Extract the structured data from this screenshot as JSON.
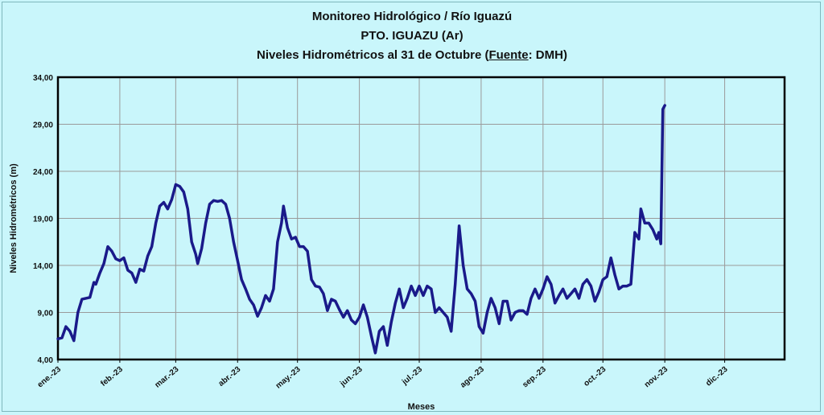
{
  "chart_data": {
    "type": "line",
    "title": "Monitoreo Hidrológico / Río Iguazú",
    "subtitle_1": "PTO.  IGUAZU (Ar)",
    "subtitle_2_prefix": "Niveles Hidrométricos  al 31 de Octubre (",
    "subtitle_2_source_label": "Fuente",
    "subtitle_2_suffix": ": DMH)",
    "xlabel": "Meses",
    "ylabel": "Niveles Hidrométricos (m)",
    "ylim": [
      4,
      34
    ],
    "yticks": [
      "4,00",
      "9,00",
      "14,00",
      "19,00",
      "24,00",
      "29,00",
      "34,00"
    ],
    "x_axis_type": "date",
    "xlim": [
      "2023-01-01",
      "2023-12-31"
    ],
    "xticks": [
      {
        "date": "2023-01-01",
        "label": "ene.-23"
      },
      {
        "date": "2023-02-01",
        "label": "feb.-23"
      },
      {
        "date": "2023-03-01",
        "label": "mar.-23"
      },
      {
        "date": "2023-04-01",
        "label": "abr.-23"
      },
      {
        "date": "2023-05-01",
        "label": "may.-23"
      },
      {
        "date": "2023-06-01",
        "label": "jun.-23"
      },
      {
        "date": "2023-07-01",
        "label": "jul.-23"
      },
      {
        "date": "2023-08-01",
        "label": "ago.-23"
      },
      {
        "date": "2023-09-01",
        "label": "sep.-23"
      },
      {
        "date": "2023-10-01",
        "label": "oct.-23"
      },
      {
        "date": "2023-11-01",
        "label": "nov.-23"
      },
      {
        "date": "2023-12-01",
        "label": "dic.-23"
      }
    ],
    "grid": true,
    "legend": "none",
    "line_color": "#1a1a8a",
    "series": [
      {
        "points": [
          [
            "2023-01-01",
            6.2
          ],
          [
            "2023-01-03",
            6.3
          ],
          [
            "2023-01-05",
            7.5
          ],
          [
            "2023-01-07",
            7.0
          ],
          [
            "2023-01-09",
            6.0
          ],
          [
            "2023-01-11",
            9.0
          ],
          [
            "2023-01-13",
            10.4
          ],
          [
            "2023-01-15",
            10.5
          ],
          [
            "2023-01-17",
            10.6
          ],
          [
            "2023-01-19",
            12.2
          ],
          [
            "2023-01-20",
            12.0
          ],
          [
            "2023-01-22",
            13.2
          ],
          [
            "2023-01-24",
            14.2
          ],
          [
            "2023-01-26",
            16.0
          ],
          [
            "2023-01-28",
            15.5
          ],
          [
            "2023-01-30",
            14.7
          ],
          [
            "2023-02-01",
            14.5
          ],
          [
            "2023-02-03",
            14.8
          ],
          [
            "2023-02-05",
            13.5
          ],
          [
            "2023-02-07",
            13.2
          ],
          [
            "2023-02-09",
            12.2
          ],
          [
            "2023-02-11",
            13.6
          ],
          [
            "2023-02-13",
            13.4
          ],
          [
            "2023-02-15",
            15.0
          ],
          [
            "2023-02-17",
            16.0
          ],
          [
            "2023-02-19",
            18.5
          ],
          [
            "2023-02-21",
            20.3
          ],
          [
            "2023-02-23",
            20.7
          ],
          [
            "2023-02-25",
            20.0
          ],
          [
            "2023-02-27",
            21.0
          ],
          [
            "2023-03-01",
            22.6
          ],
          [
            "2023-03-03",
            22.4
          ],
          [
            "2023-03-05",
            21.8
          ],
          [
            "2023-03-07",
            20.0
          ],
          [
            "2023-03-09",
            16.5
          ],
          [
            "2023-03-11",
            15.2
          ],
          [
            "2023-03-12",
            14.2
          ],
          [
            "2023-03-14",
            15.8
          ],
          [
            "2023-03-16",
            18.5
          ],
          [
            "2023-03-18",
            20.5
          ],
          [
            "2023-03-20",
            20.9
          ],
          [
            "2023-03-22",
            20.8
          ],
          [
            "2023-03-24",
            20.9
          ],
          [
            "2023-03-26",
            20.5
          ],
          [
            "2023-03-28",
            19.0
          ],
          [
            "2023-03-30",
            16.5
          ],
          [
            "2023-04-01",
            14.5
          ],
          [
            "2023-04-03",
            12.5
          ],
          [
            "2023-04-05",
            11.5
          ],
          [
            "2023-04-07",
            10.4
          ],
          [
            "2023-04-09",
            9.8
          ],
          [
            "2023-04-11",
            8.6
          ],
          [
            "2023-04-13",
            9.5
          ],
          [
            "2023-04-15",
            10.8
          ],
          [
            "2023-04-17",
            10.2
          ],
          [
            "2023-04-19",
            11.5
          ],
          [
            "2023-04-21",
            16.5
          ],
          [
            "2023-04-23",
            18.5
          ],
          [
            "2023-04-24",
            20.3
          ],
          [
            "2023-04-26",
            18.0
          ],
          [
            "2023-04-28",
            16.8
          ],
          [
            "2023-04-30",
            17.0
          ],
          [
            "2023-05-02",
            16.0
          ],
          [
            "2023-05-04",
            16.0
          ],
          [
            "2023-05-06",
            15.5
          ],
          [
            "2023-05-08",
            12.5
          ],
          [
            "2023-05-10",
            11.8
          ],
          [
            "2023-05-12",
            11.7
          ],
          [
            "2023-05-14",
            11.0
          ],
          [
            "2023-05-16",
            9.2
          ],
          [
            "2023-05-18",
            10.4
          ],
          [
            "2023-05-20",
            10.2
          ],
          [
            "2023-05-22",
            9.3
          ],
          [
            "2023-05-24",
            8.5
          ],
          [
            "2023-05-26",
            9.2
          ],
          [
            "2023-05-28",
            8.2
          ],
          [
            "2023-05-30",
            7.8
          ],
          [
            "2023-06-01",
            8.5
          ],
          [
            "2023-06-03",
            9.8
          ],
          [
            "2023-06-05",
            8.5
          ],
          [
            "2023-06-07",
            6.5
          ],
          [
            "2023-06-09",
            4.7
          ],
          [
            "2023-06-11",
            7.0
          ],
          [
            "2023-06-13",
            7.5
          ],
          [
            "2023-06-15",
            5.5
          ],
          [
            "2023-06-17",
            8.0
          ],
          [
            "2023-06-19",
            10.0
          ],
          [
            "2023-06-21",
            11.5
          ],
          [
            "2023-06-23",
            9.5
          ],
          [
            "2023-06-25",
            10.5
          ],
          [
            "2023-06-27",
            11.8
          ],
          [
            "2023-06-29",
            10.8
          ],
          [
            "2023-07-01",
            11.8
          ],
          [
            "2023-07-03",
            10.8
          ],
          [
            "2023-07-05",
            11.8
          ],
          [
            "2023-07-07",
            11.5
          ],
          [
            "2023-07-09",
            9.0
          ],
          [
            "2023-07-11",
            9.5
          ],
          [
            "2023-07-13",
            9.0
          ],
          [
            "2023-07-15",
            8.5
          ],
          [
            "2023-07-17",
            7.0
          ],
          [
            "2023-07-19",
            12.0
          ],
          [
            "2023-07-21",
            18.2
          ],
          [
            "2023-07-23",
            14.0
          ],
          [
            "2023-07-25",
            11.5
          ],
          [
            "2023-07-27",
            11.0
          ],
          [
            "2023-07-29",
            10.2
          ],
          [
            "2023-07-31",
            7.5
          ],
          [
            "2023-08-02",
            6.8
          ],
          [
            "2023-08-04",
            9.0
          ],
          [
            "2023-08-06",
            10.5
          ],
          [
            "2023-08-08",
            9.5
          ],
          [
            "2023-08-10",
            7.8
          ],
          [
            "2023-08-12",
            10.2
          ],
          [
            "2023-08-14",
            10.2
          ],
          [
            "2023-08-16",
            8.2
          ],
          [
            "2023-08-18",
            9.0
          ],
          [
            "2023-08-20",
            9.2
          ],
          [
            "2023-08-22",
            9.2
          ],
          [
            "2023-08-24",
            8.8
          ],
          [
            "2023-08-26",
            10.5
          ],
          [
            "2023-08-28",
            11.5
          ],
          [
            "2023-08-30",
            10.5
          ],
          [
            "2023-09-01",
            11.5
          ],
          [
            "2023-09-03",
            12.8
          ],
          [
            "2023-09-05",
            12.0
          ],
          [
            "2023-09-07",
            10.0
          ],
          [
            "2023-09-09",
            10.8
          ],
          [
            "2023-09-11",
            11.5
          ],
          [
            "2023-09-13",
            10.5
          ],
          [
            "2023-09-15",
            11.0
          ],
          [
            "2023-09-17",
            11.5
          ],
          [
            "2023-09-19",
            10.5
          ],
          [
            "2023-09-21",
            12.0
          ],
          [
            "2023-09-23",
            12.5
          ],
          [
            "2023-09-25",
            11.8
          ],
          [
            "2023-09-27",
            10.2
          ],
          [
            "2023-09-29",
            11.2
          ],
          [
            "2023-10-01",
            12.5
          ],
          [
            "2023-10-03",
            12.8
          ],
          [
            "2023-10-05",
            14.8
          ],
          [
            "2023-10-07",
            13.0
          ],
          [
            "2023-10-09",
            11.5
          ],
          [
            "2023-10-11",
            11.8
          ],
          [
            "2023-10-13",
            11.8
          ],
          [
            "2023-10-15",
            12.0
          ],
          [
            "2023-10-17",
            17.5
          ],
          [
            "2023-10-19",
            16.8
          ],
          [
            "2023-10-20",
            20.0
          ],
          [
            "2023-10-22",
            18.5
          ],
          [
            "2023-10-24",
            18.5
          ],
          [
            "2023-10-26",
            17.8
          ],
          [
            "2023-10-28",
            16.8
          ],
          [
            "2023-10-29",
            17.5
          ],
          [
            "2023-10-30",
            16.3
          ],
          [
            "2023-10-31",
            30.6
          ],
          [
            "2023-11-01",
            31.0
          ]
        ]
      }
    ]
  }
}
